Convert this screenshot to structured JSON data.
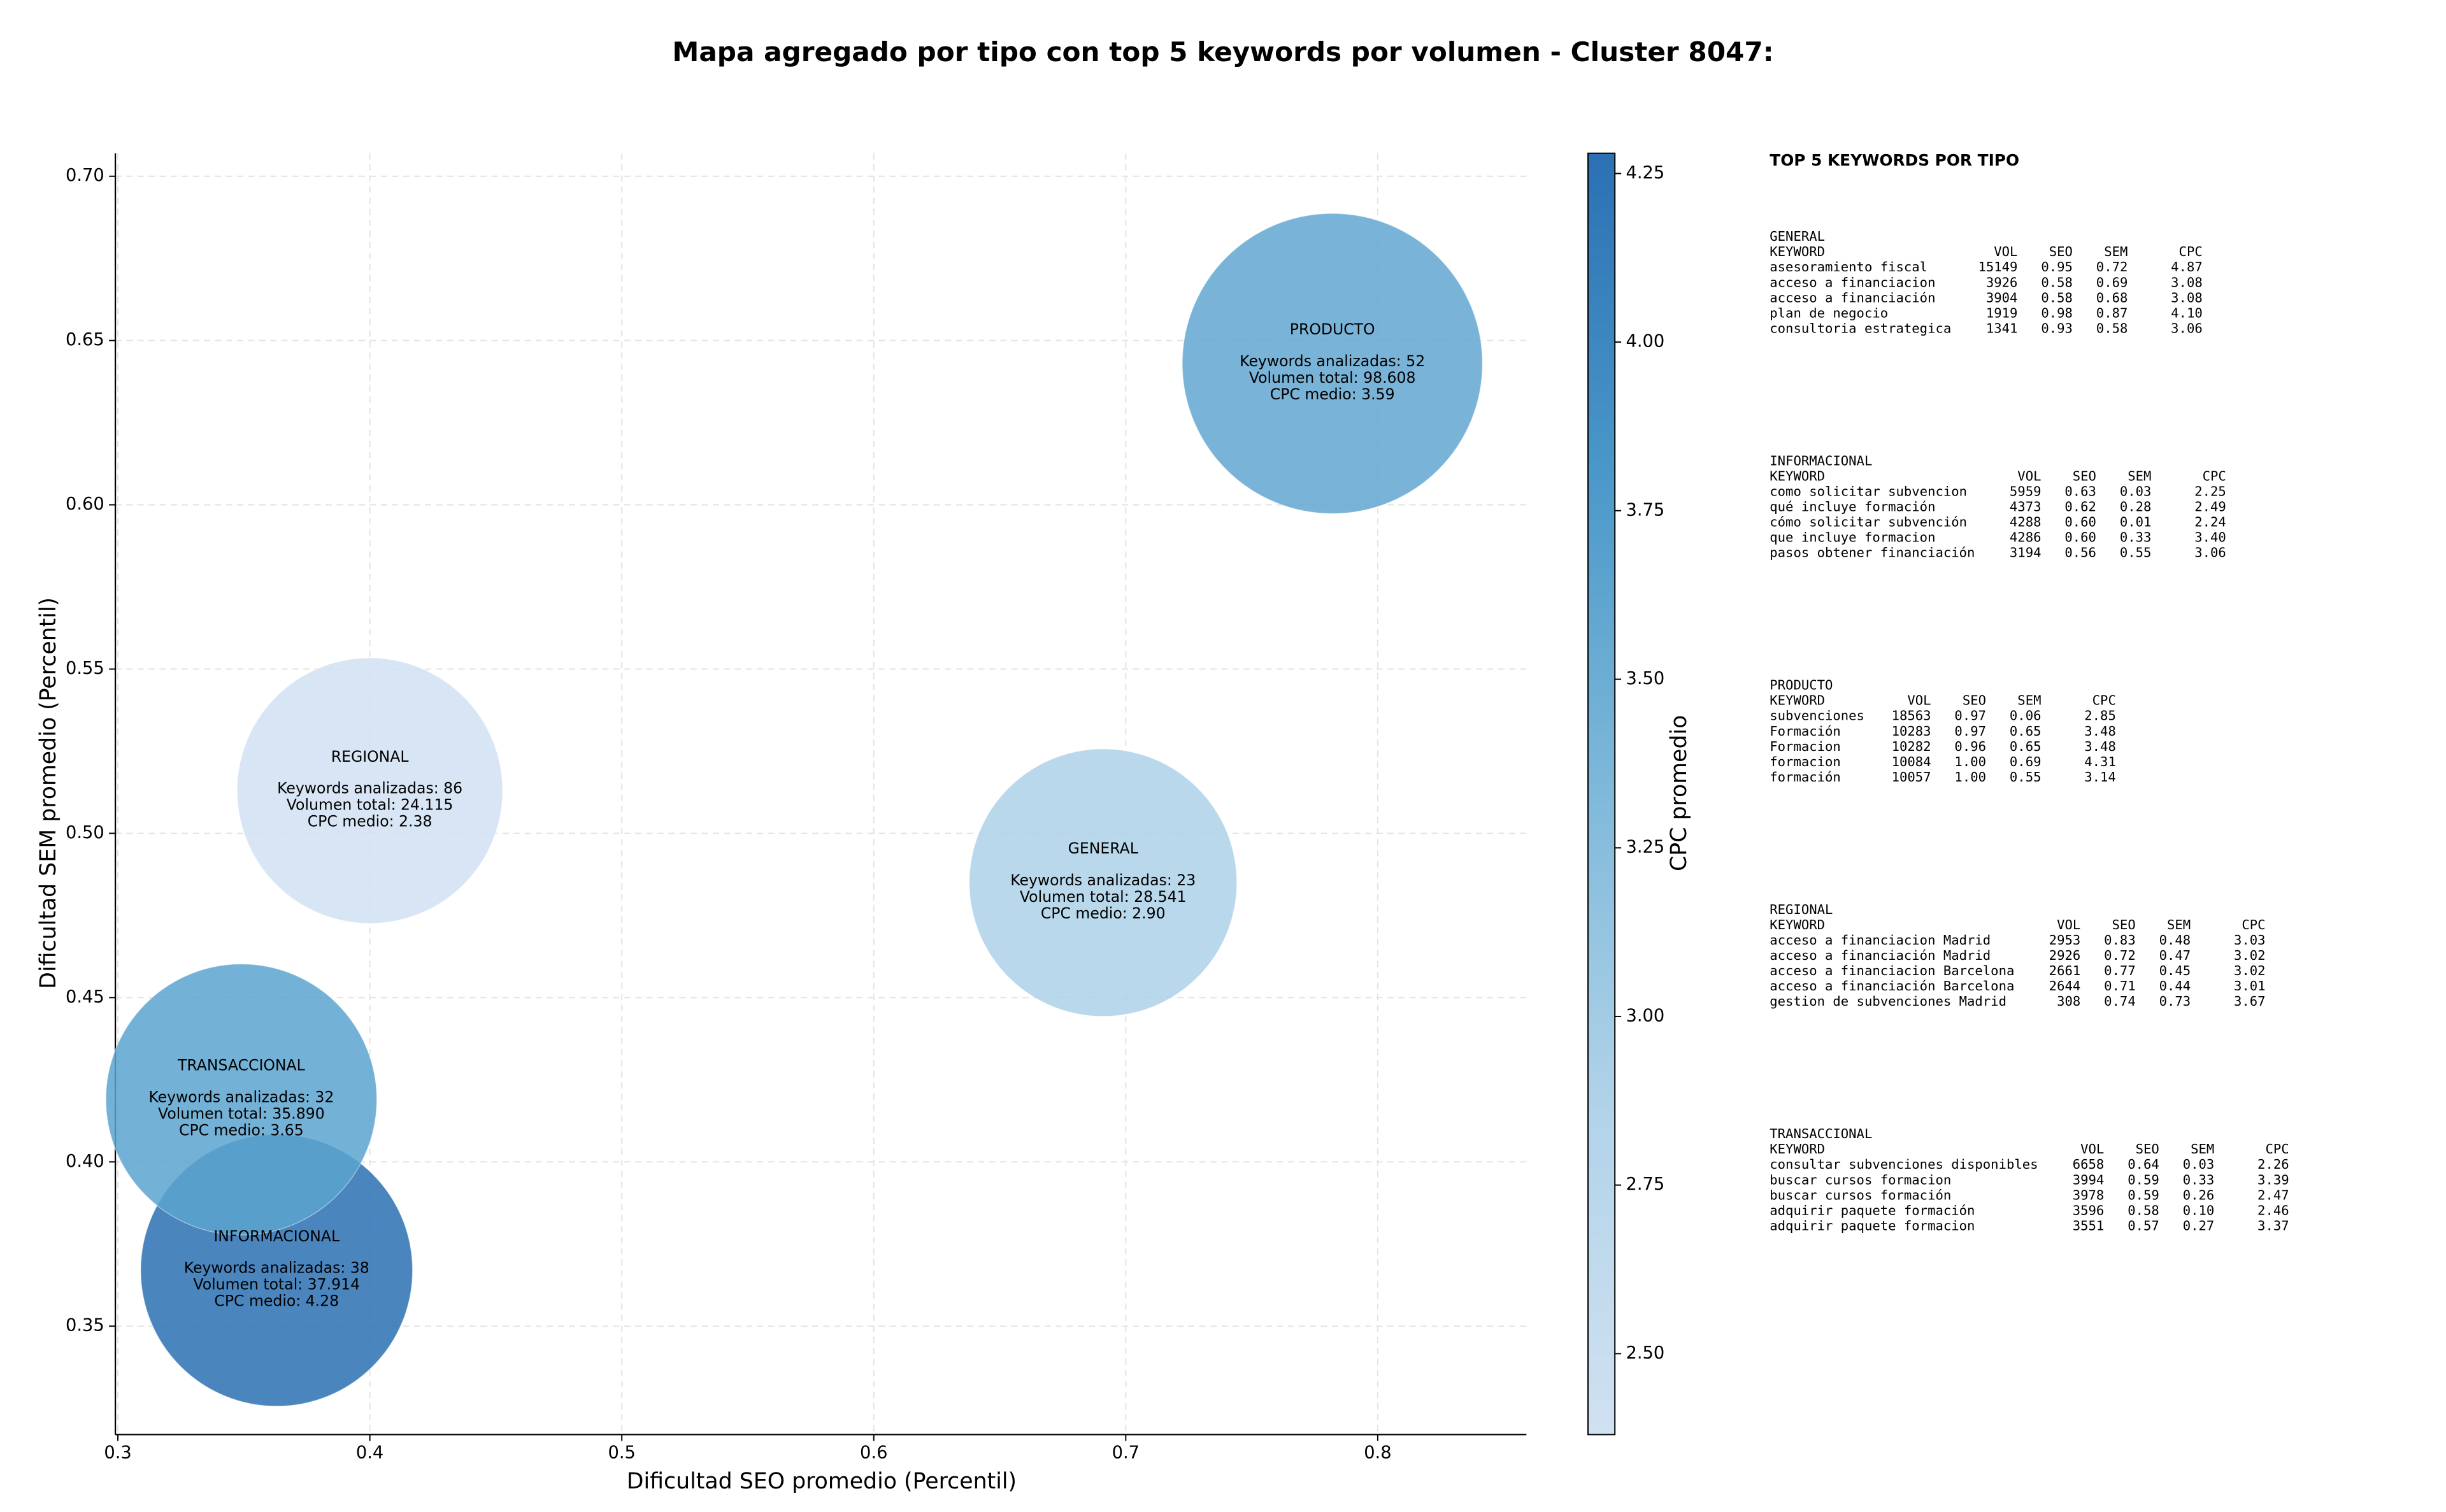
{
  "chart_data": {
    "type": "bubble",
    "title": "Mapa agregado por tipo con top 5 keywords por volumen - Cluster 8047:",
    "x_label": "Dificultad SEO promedio (Percentil)",
    "y_label": "Dificultad SEM promedio (Percentil)",
    "colorbar_label": "CPC promedio",
    "categories": [
      "GENERAL",
      "INFORMACIONAL",
      "PRODUCTO",
      "REGIONAL",
      "TRANSACCIONAL"
    ],
    "x": [
      0.691,
      0.363,
      0.782,
      0.4,
      0.349
    ],
    "values": [
      0.485,
      0.367,
      0.643,
      0.513,
      0.419
    ],
    "sizes": [
      28541,
      37914,
      98608,
      24115,
      35890
    ],
    "cpc": [
      2.9,
      4.28,
      3.59,
      2.38,
      3.65
    ],
    "annotations": [
      [
        "Keywords analizadas: 23",
        "Volumen total: 28.541",
        "CPC medio: 2.90"
      ],
      [
        "Keywords analizadas: 38",
        "Volumen total: 37.914",
        "CPC medio: 4.28"
      ],
      [
        "Keywords analizadas: 52",
        "Volumen total: 98.608",
        "CPC medio: 3.59"
      ],
      [
        "Keywords analizadas: 86",
        "Volumen total: 24.115",
        "CPC medio: 2.38"
      ],
      [
        "Keywords analizadas: 32",
        "Volumen total: 35.890",
        "CPC medio: 3.65"
      ]
    ],
    "xlim": [
      0.299,
      0.859
    ],
    "xticks": [
      0.3,
      0.4,
      0.5,
      0.6,
      0.7,
      0.8
    ],
    "ylim": [
      0.317,
      0.707
    ],
    "yticks": [
      0.35,
      {
        "value": 0.4,
        "label": "0.40"
      },
      0.45,
      {
        "value": 0.5,
        "label": "0.50"
      },
      0.55,
      {
        "value": 0.6,
        "label": "0.60"
      },
      0.65,
      {
        "value": 0.7,
        "label": "0.70"
      }
    ],
    "clim": [
      2.38,
      4.28
    ],
    "cticks": [
      {
        "value": 2.5,
        "label": "2.50"
      },
      2.75,
      {
        "value": 3,
        "label": "3.00"
      },
      3.25,
      {
        "value": 3.5,
        "label": "3.50"
      },
      3.75,
      {
        "value": 4,
        "label": "4.00"
      },
      4.25
    ],
    "colormap": [
      "#d0e1f2",
      "#b2d3e9",
      "#7fb9da",
      "#4a98c9",
      "#2a70b3"
    ],
    "grid": true
  },
  "keywords_panel": {
    "title": "TOP 5 KEYWORDS POR TIPO",
    "columns": [
      "KEYWORD",
      "VOL",
      "SEO",
      "SEM",
      "CPC"
    ],
    "groups": [
      {
        "name": "GENERAL",
        "rows": [
          [
            "asesoramiento fiscal",
            "15149",
            "0.95",
            "0.72",
            "4.87"
          ],
          [
            "acceso a financiacion",
            "3926",
            "0.58",
            "0.69",
            "3.08"
          ],
          [
            "acceso a financiación",
            "3904",
            "0.58",
            "0.68",
            "3.08"
          ],
          [
            "plan de negocio",
            "1919",
            "0.98",
            "0.87",
            "4.10"
          ],
          [
            "consultoria estrategica",
            "1341",
            "0.93",
            "0.58",
            "3.06"
          ]
        ]
      },
      {
        "name": "INFORMACIONAL",
        "rows": [
          [
            "como solicitar subvencion",
            "5959",
            "0.63",
            "0.03",
            "2.25"
          ],
          [
            "qué incluye formación",
            "4373",
            "0.62",
            "0.28",
            "2.49"
          ],
          [
            "cómo solicitar subvención",
            "4288",
            "0.60",
            "0.01",
            "2.24"
          ],
          [
            "que incluye formacion",
            "4286",
            "0.60",
            "0.33",
            "3.40"
          ],
          [
            "pasos obtener financiación",
            "3194",
            "0.56",
            "0.55",
            "3.06"
          ]
        ]
      },
      {
        "name": "PRODUCTO",
        "rows": [
          [
            "subvenciones",
            "18563",
            "0.97",
            "0.06",
            "2.85"
          ],
          [
            "Formación",
            "10283",
            "0.97",
            "0.65",
            "3.48"
          ],
          [
            "Formacion",
            "10282",
            "0.96",
            "0.65",
            "3.48"
          ],
          [
            "formacion",
            "10084",
            "1.00",
            "0.69",
            "4.31"
          ],
          [
            "formación",
            "10057",
            "1.00",
            "0.55",
            "3.14"
          ]
        ]
      },
      {
        "name": "REGIONAL",
        "rows": [
          [
            "acceso a financiacion Madrid",
            "2953",
            "0.83",
            "0.48",
            "3.03"
          ],
          [
            "acceso a financiación Madrid",
            "2926",
            "0.72",
            "0.47",
            "3.02"
          ],
          [
            "acceso a financiacion Barcelona",
            "2661",
            "0.77",
            "0.45",
            "3.02"
          ],
          [
            "acceso a financiación Barcelona",
            "2644",
            "0.71",
            "0.44",
            "3.01"
          ],
          [
            "gestion de subvenciones Madrid",
            "308",
            "0.74",
            "0.73",
            "3.67"
          ]
        ]
      },
      {
        "name": "TRANSACCIONAL",
        "rows": [
          [
            "consultar subvenciones disponibles",
            "6658",
            "0.64",
            "0.03",
            "2.26"
          ],
          [
            "buscar cursos formacion",
            "3994",
            "0.59",
            "0.33",
            "3.39"
          ],
          [
            "buscar cursos formación",
            "3978",
            "0.59",
            "0.26",
            "2.47"
          ],
          [
            "adquirir paquete formación",
            "3596",
            "0.58",
            "0.10",
            "2.46"
          ],
          [
            "adquirir paquete formacion",
            "3551",
            "0.57",
            "0.27",
            "3.37"
          ]
        ]
      }
    ]
  }
}
